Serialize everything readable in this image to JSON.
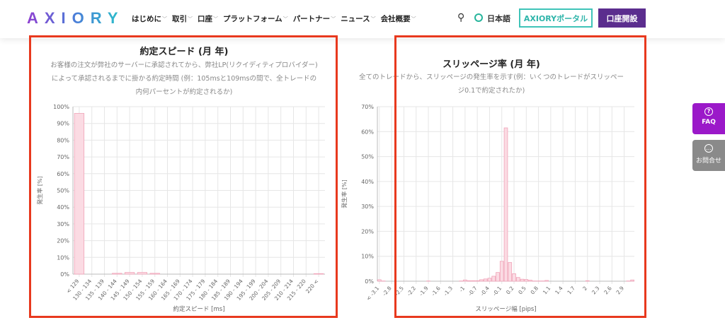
{
  "header": {
    "logo": "AXIORY",
    "nav": [
      "はじめに",
      "取引",
      "口座",
      "プラットフォーム",
      "パートナー",
      "ニュース",
      "会社概要"
    ],
    "search_icon": "search-icon",
    "language": "日本語",
    "portal_button": "AXIORYポータル",
    "open_account_button": "口座開設"
  },
  "side": {
    "faq": "FAQ",
    "contact": "お問合せ"
  },
  "colors": {
    "accent": "#5b2d8e",
    "teal": "#3fc4b8",
    "bar_fill": "#fbdbe3",
    "bar_stroke": "#f0a3b8",
    "highlight": "#e8391e"
  },
  "charts": [
    {
      "title": "約定スピード (月 年)",
      "description": "お客様の注文が弊社のサーバーに承認されてから、弊社LP(リクイディティプロバイダー)によって承認されるまでに掛かる約定時間 (例：105msと109msの間で、全トレードの内何パーセントが約定されるか)"
    },
    {
      "title": "スリッページ率 (月 年)",
      "description": "全てのトレードから、スリッページの発生率を示す(例：いくつのトレードがスリッページ0.1で約定されたか)"
    }
  ],
  "chart_data": [
    {
      "type": "bar",
      "xlabel": "約定スピード [ms]",
      "ylabel": "発生率 [%]",
      "ylim": [
        0,
        100
      ],
      "yticks": [
        "0%",
        "10%",
        "20%",
        "30%",
        "40%",
        "50%",
        "60%",
        "70%",
        "80%",
        "90%",
        "100%"
      ],
      "grid": true,
      "categories": [
        "< 129",
        "130 - 134",
        "135 - 139",
        "140 - 144",
        "145 - 149",
        "150 - 154",
        "155 - 159",
        "160 - 164",
        "165 - 169",
        "170 - 174",
        "175 - 179",
        "180 - 184",
        "185 - 189",
        "190 - 194",
        "195 - 199",
        "200 - 204",
        "205 - 209",
        "210 - 214",
        "215 - 220",
        "220 <"
      ],
      "values": [
        96,
        0,
        0,
        0.5,
        1,
        1,
        0.5,
        0,
        0,
        0,
        0,
        0,
        0,
        0,
        0,
        0,
        0,
        0,
        0,
        0.3
      ]
    },
    {
      "type": "bar",
      "xlabel": "スリッページ幅 [pips]",
      "ylabel": "発生率 [%]",
      "ylim": [
        0,
        70
      ],
      "yticks": [
        "0%",
        "10%",
        "20%",
        "30%",
        "40%",
        "50%",
        "60%",
        "70%"
      ],
      "grid": true,
      "tick_labels": [
        "< -3.1",
        "-2.8",
        "-2.5",
        "-2.2",
        "-1.9",
        "-1.6",
        "-1.3",
        "-1",
        "-0.7",
        "-0.4",
        "-0.1",
        "0.2",
        "0.5",
        "0.8",
        "1.1",
        "1.4",
        "1.7",
        "2",
        "2.3",
        "2.6",
        "2.9"
      ],
      "values": [
        0.6,
        0.1,
        0,
        0,
        0,
        0,
        0,
        0,
        0,
        0,
        0,
        0,
        0.1,
        0,
        0,
        0,
        0,
        0,
        0,
        0,
        0.1,
        0.5,
        0.2,
        0.2,
        0.2,
        0.6,
        0.9,
        1.2,
        2,
        3.5,
        8,
        61.5,
        7.5,
        3,
        1.5,
        0.8,
        0.7,
        0.4,
        0.1,
        0.1,
        0.1,
        0.3,
        0,
        0,
        0,
        0,
        0,
        0,
        0,
        0,
        0,
        0.2,
        0,
        0,
        0,
        0,
        0,
        0,
        0,
        0,
        0,
        0.1,
        0.5
      ]
    }
  ]
}
